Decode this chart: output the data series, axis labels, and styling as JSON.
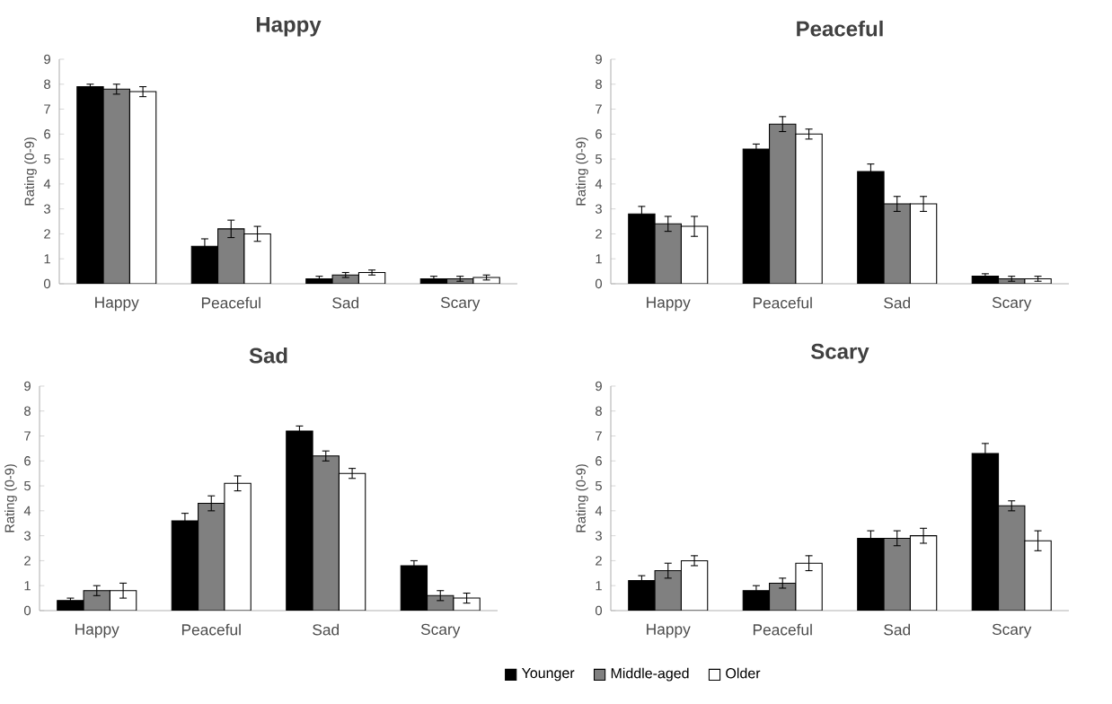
{
  "chart_data": [
    {
      "type": "bar",
      "title": "Happy",
      "ylabel": "Rating (0-9)",
      "categories": [
        "Happy",
        "Peaceful",
        "Sad",
        "Scary"
      ],
      "ylim": [
        0,
        9
      ],
      "yticks": [
        0,
        1,
        2,
        3,
        4,
        5,
        6,
        7,
        8,
        9
      ],
      "series": [
        {
          "color": "#000000",
          "values": [
            7.9,
            1.5,
            0.2,
            0.2
          ],
          "errors": [
            0.1,
            0.3,
            0.1,
            0.1
          ]
        },
        {
          "color": "#808080",
          "values": [
            7.8,
            2.2,
            0.35,
            0.2
          ],
          "errors": [
            0.2,
            0.35,
            0.1,
            0.1
          ]
        },
        {
          "color": "#ffffff",
          "values": [
            7.7,
            2.0,
            0.45,
            0.25
          ],
          "errors": [
            0.2,
            0.3,
            0.1,
            0.1
          ]
        }
      ]
    },
    {
      "type": "bar",
      "title": "Peaceful",
      "ylabel": "Rating (0-9)",
      "categories": [
        "Happy",
        "Peaceful",
        "Sad",
        "Scary"
      ],
      "ylim": [
        0,
        9
      ],
      "yticks": [
        0,
        1,
        2,
        3,
        4,
        5,
        6,
        7,
        8,
        9
      ],
      "series": [
        {
          "color": "#000000",
          "values": [
            2.8,
            5.4,
            4.5,
            0.3
          ],
          "errors": [
            0.3,
            0.2,
            0.3,
            0.1
          ]
        },
        {
          "color": "#808080",
          "values": [
            2.4,
            6.4,
            3.2,
            0.2
          ],
          "errors": [
            0.3,
            0.3,
            0.3,
            0.1
          ]
        },
        {
          "color": "#ffffff",
          "values": [
            2.3,
            6.0,
            3.2,
            0.2
          ],
          "errors": [
            0.4,
            0.2,
            0.3,
            0.1
          ]
        }
      ]
    },
    {
      "type": "bar",
      "title": "Sad",
      "ylabel": "Rating (0-9)",
      "categories": [
        "Happy",
        "Peaceful",
        "Sad",
        "Scary"
      ],
      "ylim": [
        0,
        9
      ],
      "yticks": [
        0,
        1,
        2,
        3,
        4,
        5,
        6,
        7,
        8,
        9
      ],
      "legend": "bottom",
      "series": [
        {
          "name": "Younger",
          "color": "#000000",
          "values": [
            0.4,
            3.6,
            7.2,
            1.8
          ],
          "errors": [
            0.1,
            0.3,
            0.2,
            0.2
          ]
        },
        {
          "name": "Middle-aged",
          "color": "#808080",
          "values": [
            0.8,
            4.3,
            6.2,
            0.6
          ],
          "errors": [
            0.2,
            0.3,
            0.2,
            0.2
          ]
        },
        {
          "name": "Older",
          "color": "#ffffff",
          "values": [
            0.8,
            5.1,
            5.5,
            0.5
          ],
          "errors": [
            0.3,
            0.3,
            0.2,
            0.2
          ]
        }
      ]
    },
    {
      "type": "bar",
      "title": "Scary",
      "ylabel": "Rating (0-9)",
      "categories": [
        "Happy",
        "Peaceful",
        "Sad",
        "Scary"
      ],
      "ylim": [
        0,
        9
      ],
      "yticks": [
        0,
        1,
        2,
        3,
        4,
        5,
        6,
        7,
        8,
        9
      ],
      "series": [
        {
          "color": "#000000",
          "values": [
            1.2,
            0.8,
            2.9,
            6.3
          ],
          "errors": [
            0.2,
            0.2,
            0.3,
            0.4
          ]
        },
        {
          "color": "#808080",
          "values": [
            1.6,
            1.1,
            2.9,
            4.2
          ],
          "errors": [
            0.3,
            0.2,
            0.3,
            0.2
          ]
        },
        {
          "color": "#ffffff",
          "values": [
            2.0,
            1.9,
            3.0,
            2.8
          ],
          "errors": [
            0.2,
            0.3,
            0.3,
            0.4
          ]
        }
      ]
    }
  ]
}
